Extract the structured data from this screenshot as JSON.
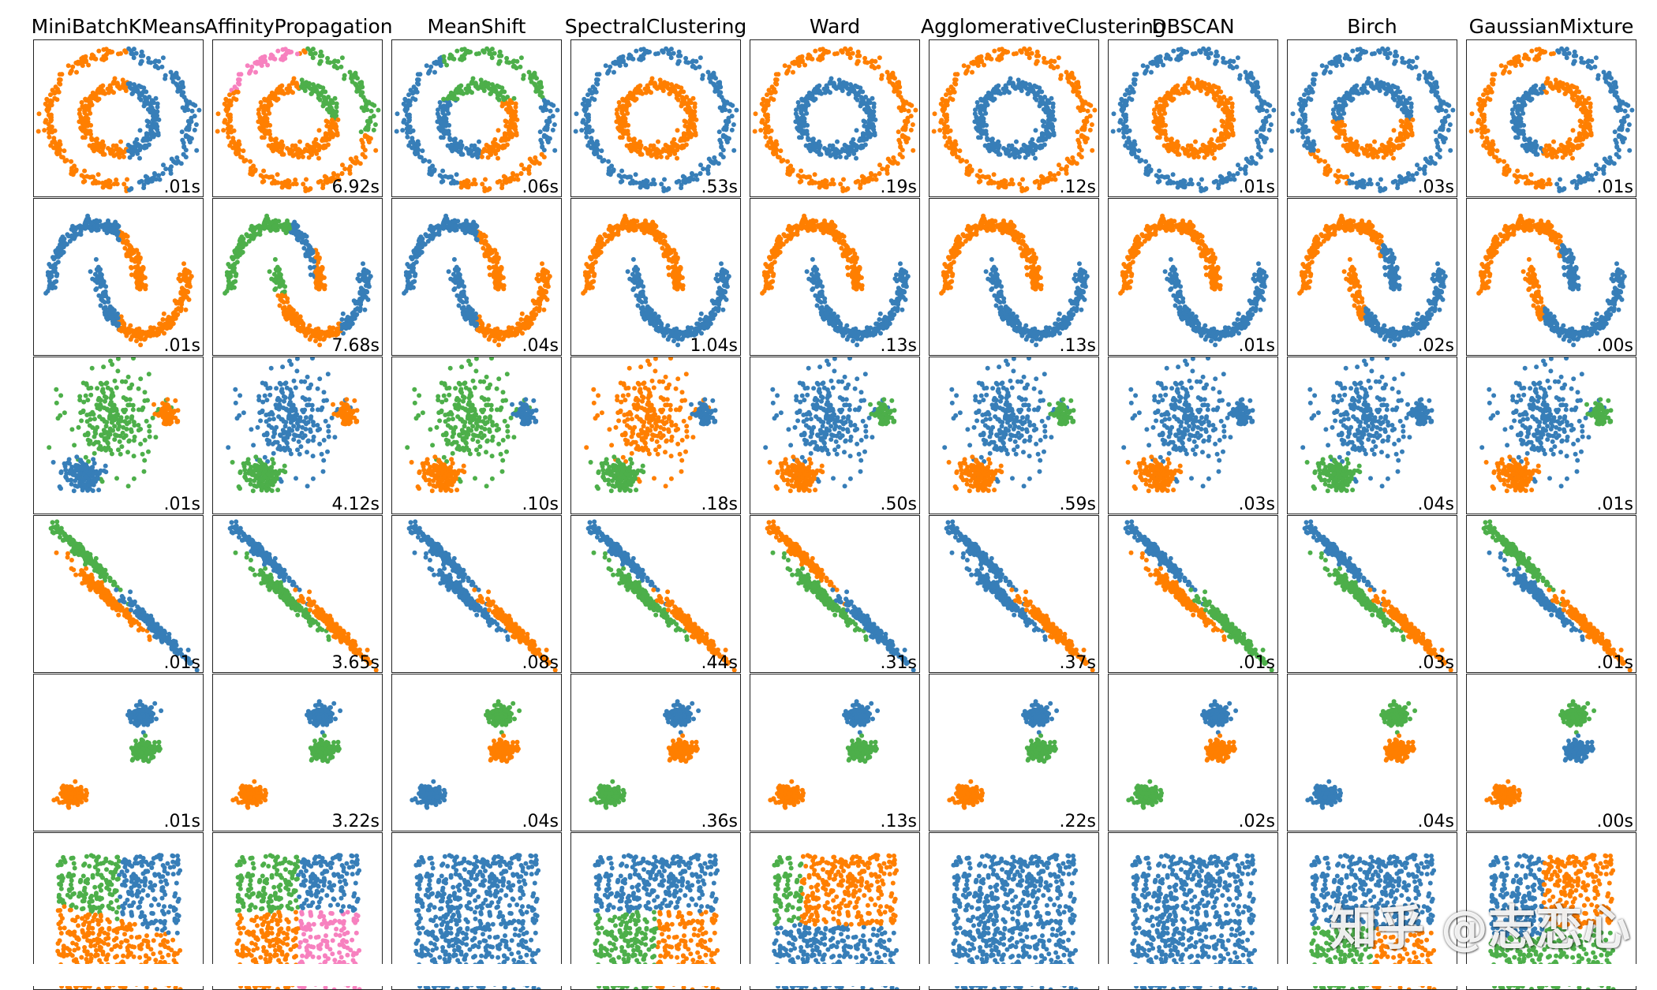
{
  "chart_data": {
    "type": "scatter",
    "colors": {
      "blue": "#377eb8",
      "orange": "#ff7f00",
      "green": "#4daf4a",
      "pink": "#f781bf"
    },
    "algorithms": [
      "MiniBatchKMeans",
      "AffinityPropagation",
      "MeanShift",
      "SpectralClustering",
      "Ward",
      "AgglomerativeClustering",
      "DBSCAN",
      "Birch",
      "GaussianMixture"
    ],
    "datasets": [
      {
        "kind": "circles",
        "times": [
          ".01s",
          "6.92s",
          ".06s",
          ".53s",
          ".19s",
          ".12s",
          ".01s",
          ".03s",
          ".01s"
        ],
        "patterns": [
          "vsplit",
          "ap4",
          "ms3",
          "ring",
          "ring_inv",
          "ring_inv",
          "ring",
          "birch_circ",
          "gmm_circ"
        ]
      },
      {
        "kind": "moons",
        "times": [
          ".01s",
          "7.68s",
          ".04s",
          "1.04s",
          ".13s",
          ".13s",
          ".01s",
          ".02s",
          ".00s"
        ],
        "patterns": [
          "moon_split",
          "moon_ap",
          "moon_split",
          "moon",
          "moon",
          "moon",
          "moon",
          "moon_split2",
          "moon_split2"
        ]
      },
      {
        "kind": "varied",
        "times": [
          ".01s",
          "4.12s",
          ".10s",
          ".18s",
          ".50s",
          ".59s",
          ".03s",
          ".04s",
          ".01s"
        ],
        "palette": [
          [
            "green",
            "orange",
            "blue"
          ],
          [
            "blue",
            "orange",
            "green"
          ],
          [
            "green",
            "blue",
            "orange"
          ],
          [
            "orange",
            "blue",
            "green"
          ],
          [
            "blue",
            "green",
            "orange"
          ],
          [
            "blue",
            "green",
            "orange"
          ],
          [
            "blue",
            "blue",
            "orange"
          ],
          [
            "blue",
            "blue",
            "green"
          ],
          [
            "blue",
            "green",
            "orange"
          ]
        ]
      },
      {
        "kind": "aniso",
        "times": [
          ".01s",
          "3.65s",
          ".08s",
          ".44s",
          ".31s",
          ".37s",
          ".01s",
          ".03s",
          ".01s"
        ],
        "palette": [
          [
            "green",
            "orange",
            "blue"
          ],
          [
            "blue",
            "green",
            "orange"
          ],
          [
            "blue",
            "blue",
            "orange"
          ],
          [
            "blue",
            "green",
            "orange"
          ],
          [
            "orange",
            "green",
            "blue"
          ],
          [
            "blue",
            "blue",
            "orange"
          ],
          [
            "blue",
            "orange",
            "green"
          ],
          [
            "blue",
            "green",
            "orange"
          ],
          [
            "green",
            "blue",
            "orange"
          ]
        ]
      },
      {
        "kind": "blobs",
        "times": [
          ".01s",
          "3.22s",
          ".04s",
          ".36s",
          ".13s",
          ".22s",
          ".02s",
          ".04s",
          ".00s"
        ],
        "palette": [
          [
            "blue",
            "green",
            "orange"
          ],
          [
            "blue",
            "green",
            "orange"
          ],
          [
            "green",
            "orange",
            "blue"
          ],
          [
            "blue",
            "orange",
            "green"
          ],
          [
            "blue",
            "green",
            "orange"
          ],
          [
            "blue",
            "green",
            "orange"
          ],
          [
            "blue",
            "orange",
            "green"
          ],
          [
            "green",
            "orange",
            "blue"
          ],
          [
            "green",
            "blue",
            "orange"
          ]
        ]
      },
      {
        "kind": "uniform",
        "times": [
          "",
          "",
          "",
          "",
          "",
          "",
          "",
          "",
          ""
        ],
        "patterns": [
          "kmeans3",
          "ap4q",
          "all_blue",
          "spec3",
          "ward3",
          "all_blue",
          "all_blue",
          "birch3",
          "gmm3"
        ]
      }
    ]
  },
  "watermark": "知乎 @志恋心"
}
